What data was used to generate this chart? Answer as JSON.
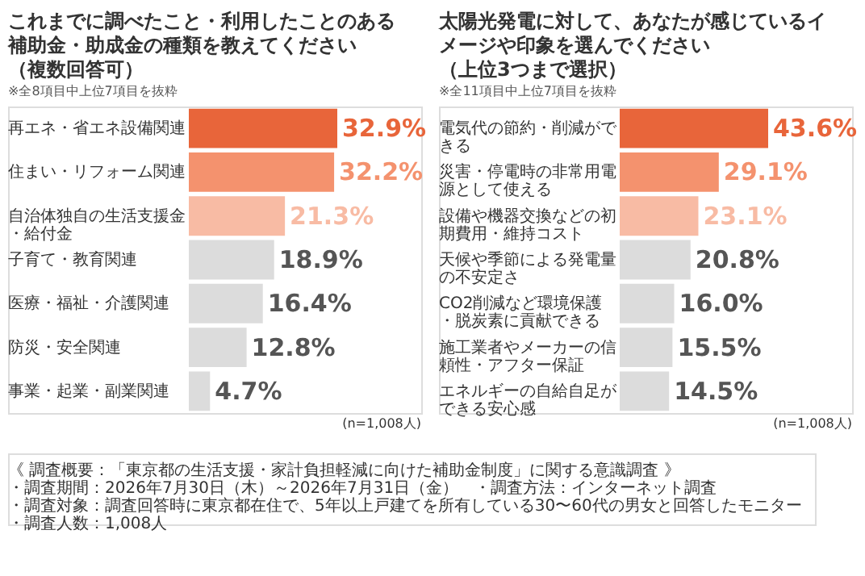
{
  "chart_data": [
    {
      "type": "bar",
      "orientation": "horizontal",
      "title": "これまでに調べたこと・利用したことのある補助金・助成金の種類を教えてください（複数回答可）",
      "categories": [
        "再エネ・省エネ設備関連",
        "住まい・リフォーム関連",
        "自治体独自の生活支援金・給付金",
        "子育て・教育関連",
        "医療・福祉・介護関連",
        "防災・安全関連",
        "事業・起業・副業関連"
      ],
      "values": [
        32.9,
        32.2,
        21.3,
        18.9,
        16.4,
        12.8,
        4.7
      ],
      "value_labels": [
        "32.9%",
        "32.2%",
        "21.3%",
        "18.9%",
        "16.4%",
        "12.8%",
        "4.7%"
      ],
      "colors": [
        "#e8653a",
        "#f4926e",
        "#f8bba4",
        "#dcdcdc",
        "#dcdcdc",
        "#dcdcdc",
        "#dcdcdc"
      ],
      "annotations": [
        "※全8項目中上位7項目を抜粋",
        "(n=1,008人)",
        "《 調査概要：「東京都の生活支援・家計負担軽減に向けた補助金制度」に関する意識調査 》",
        "・調査期間：2026年7月30日（木）～2026年7月31日（金）　・調査方法：インターネット調査",
        "・調査対象：調査回答時に東京都在住で、5年以上戸建てを所有している30〜60代の男女と回答したモニター",
        "・調査人数：1,008人"
      ]
    },
    {
      "type": "bar",
      "orientation": "horizontal",
      "title": "太陽光発電に対して、あなたが感じているイメージや印象を選んでください（上位3つまで選択）",
      "categories": [
        "電気代の節約・削減ができる",
        "災害・停電時の非常用電源として使える",
        "設備や機器交換などの初期費用・維持コスト",
        "天候や季節による発電量の不安定さ",
        "CO2削減など環境保護・脱炭素に貢献できる",
        "施工業者やメーカーの信頼性・アフター保証",
        "エネルギーの自給自足ができる安心感"
      ],
      "values": [
        43.6,
        29.1,
        23.1,
        20.8,
        16.0,
        15.5,
        14.5
      ],
      "value_labels": [
        "43.6%",
        "29.1%",
        "23.1%",
        "20.8%",
        "16.0%",
        "15.5%",
        "14.5%"
      ],
      "colors": [
        "#e8653a",
        "#f4926e",
        "#f8bba4",
        "#dcdcdc",
        "#dcdcdc",
        "#dcdcdc",
        "#dcdcdc"
      ],
      "annotations": [
        "※全11項目中上位7項目を抜粋",
        "(n=1,008人)"
      ]
    }
  ]
}
